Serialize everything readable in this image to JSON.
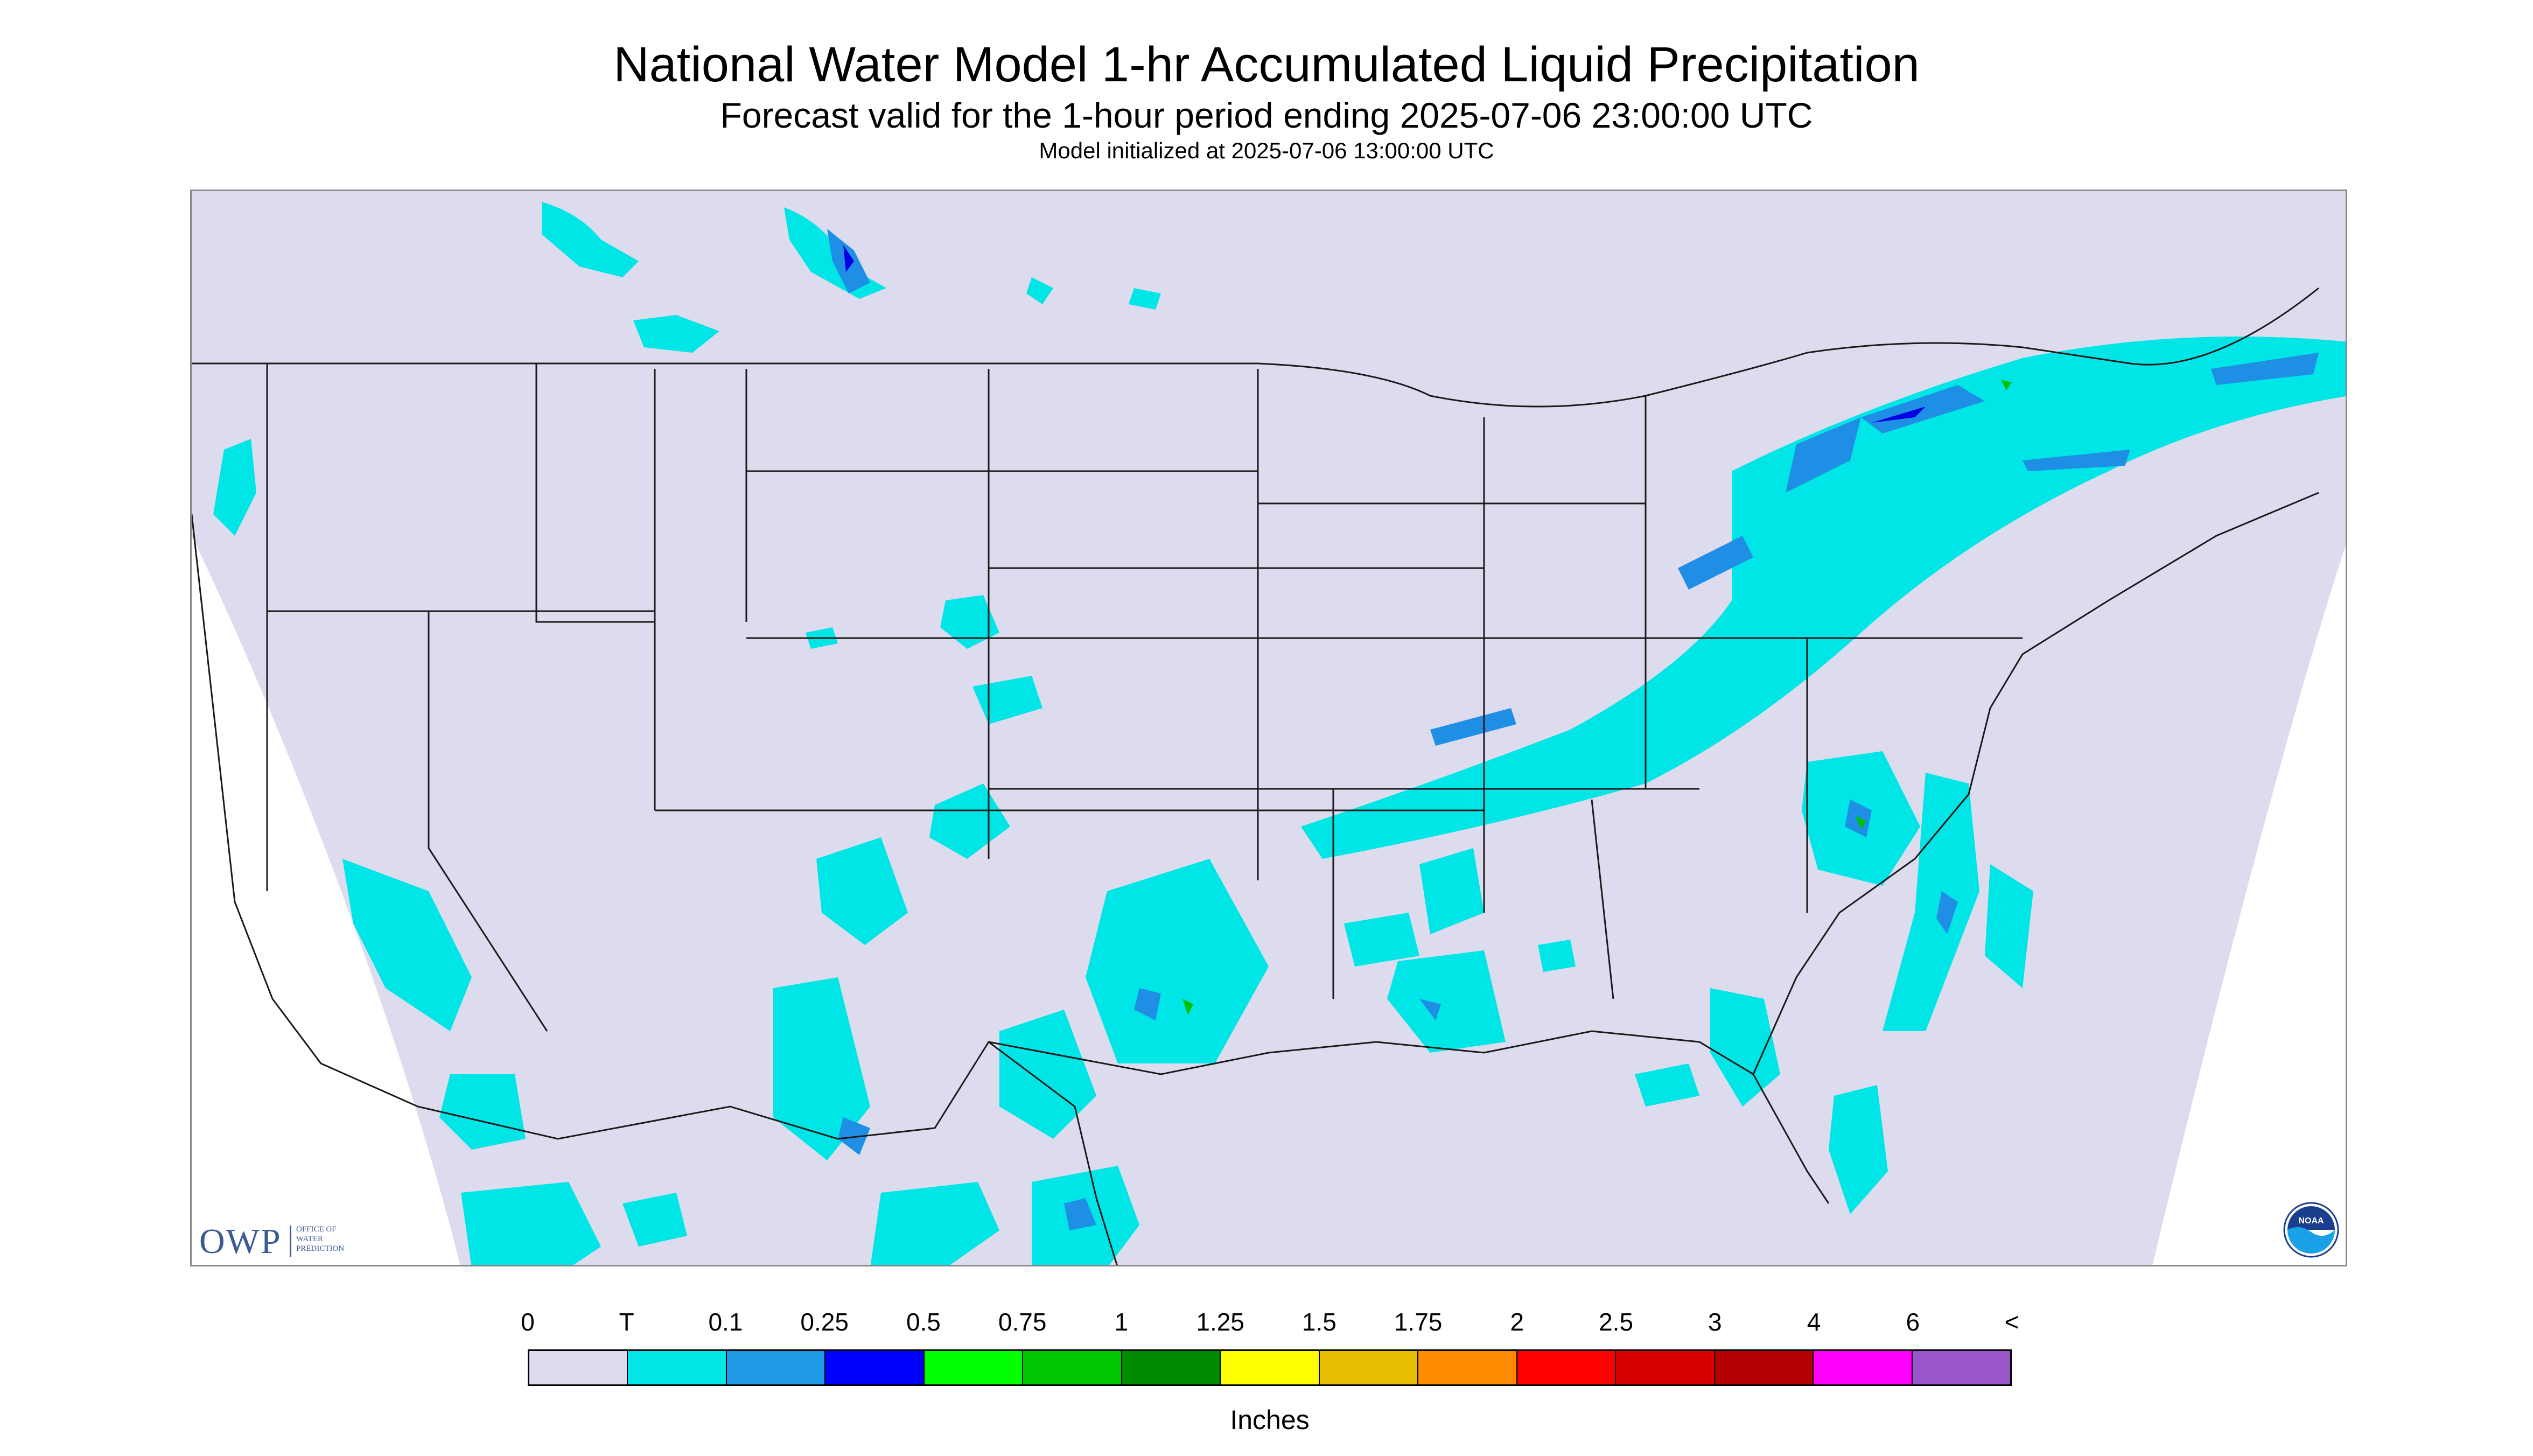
{
  "title": "National Water Model 1-hr Accumulated Liquid Precipitation",
  "subtitle": "Forecast valid for the 1-hour period ending 2025-07-06 23:00:00 UTC",
  "init_line": "Model initialized at 2025-07-06 13:00:00 UTC",
  "map": {
    "background_color": "#dcdcee",
    "outside_domain_color": "#ffffff",
    "boundary_color": "#1a1a1a",
    "precip_light_color": "#00e5e5",
    "precip_mid_color": "#1f8fe6",
    "precip_heavy_color": "#0000e0",
    "precip_green_color": "#00c000"
  },
  "logos": {
    "owp_letters": "OWP",
    "owp_line1": "OFFICE OF",
    "owp_line2": "WATER",
    "owp_line3": "PREDICTION",
    "noaa_text": "NOAA"
  },
  "legend": {
    "units": "Inches",
    "ticks": [
      "0",
      "T",
      "0.1",
      "0.25",
      "0.5",
      "0.75",
      "1",
      "1.25",
      "1.5",
      "1.75",
      "2",
      "2.5",
      "3",
      "4",
      "6",
      "<"
    ],
    "colors": [
      "#dcdcee",
      "#00e5e5",
      "#1f9ae6",
      "#0000ff",
      "#00ff00",
      "#00c800",
      "#008c00",
      "#ffff00",
      "#e6c000",
      "#ff8c00",
      "#ff0000",
      "#d80000",
      "#b40000",
      "#ff00ff",
      "#9955cc"
    ]
  }
}
